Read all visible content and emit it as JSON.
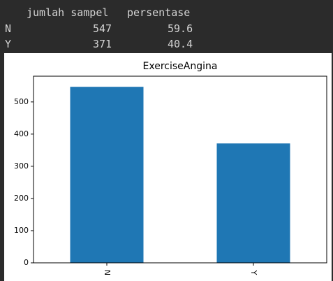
{
  "output_table": {
    "header": [
      "jumlah sampel",
      "persentase"
    ],
    "rows": [
      {
        "label": "N",
        "jumlah_sampel": "547",
        "persentase": "59.6"
      },
      {
        "label": "Y",
        "jumlah_sampel": "371",
        "persentase": "40.4"
      }
    ]
  },
  "chart_data": {
    "type": "bar",
    "title": "ExerciseAngina",
    "categories": [
      "N",
      "Y"
    ],
    "values": [
      547,
      371
    ],
    "xlabel": "",
    "ylabel": "",
    "ylim": [
      0,
      580
    ],
    "yticks": [
      0,
      100,
      200,
      300,
      400,
      500
    ],
    "bar_color": "#1f77b4",
    "grid": false,
    "legend": "none"
  },
  "colors": {
    "background": "#2b2b2b",
    "text": "#d4d4d4",
    "figure_bg": "#ffffff",
    "axis": "#000000"
  }
}
